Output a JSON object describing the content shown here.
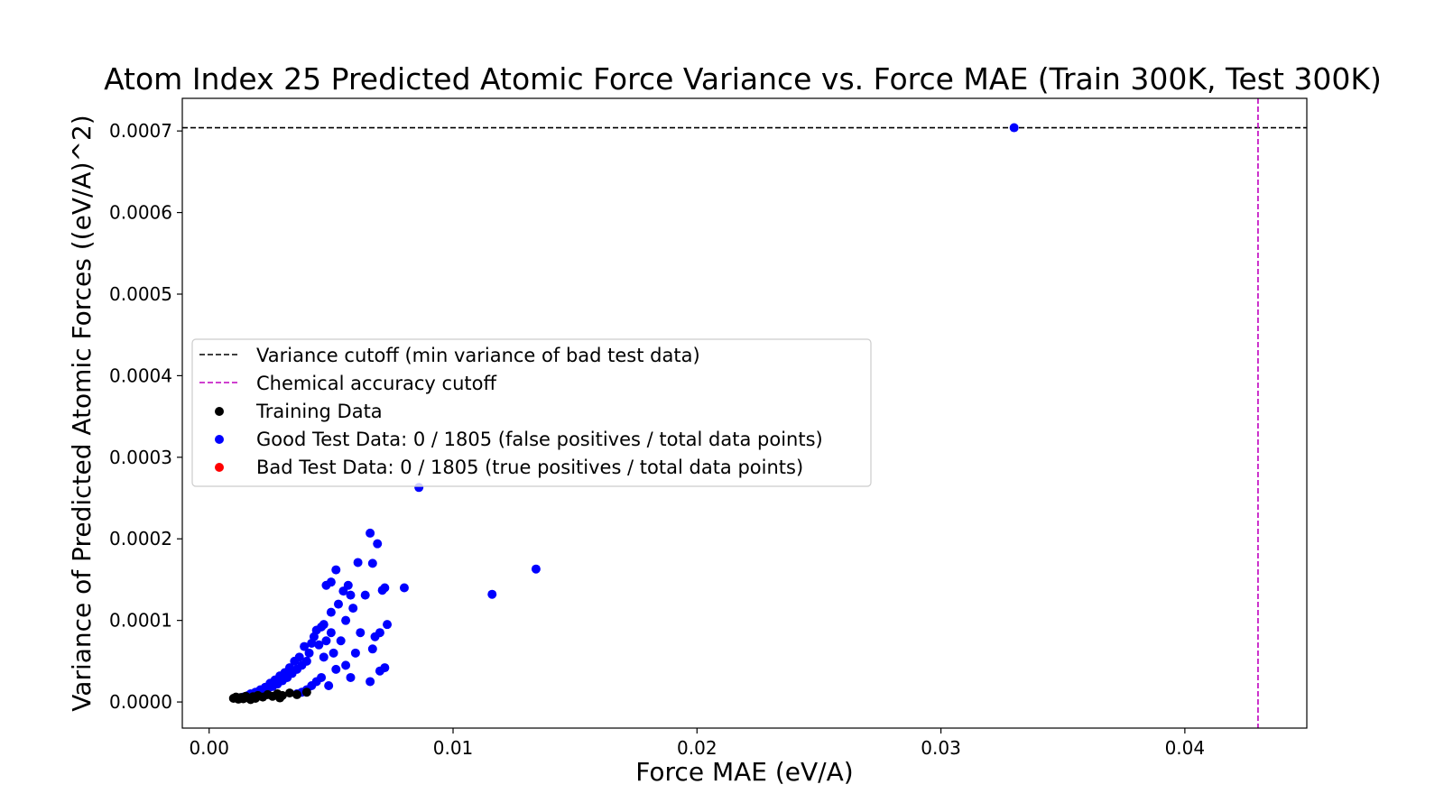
{
  "chart_data": {
    "type": "scatter",
    "title": "Atom Index 25 Predicted Atomic Force Variance vs. Force MAE (Train 300K, Test 300K)",
    "xlabel": "Force MAE (eV/A)",
    "ylabel": "Variance of Predicted Atomic Forces ((eV/A)^2)",
    "xlim": [
      -0.0011,
      0.045
    ],
    "ylim": [
      -3.2e-05,
      0.00074
    ],
    "xticks": [
      0.0,
      0.01,
      0.02,
      0.03,
      0.04
    ],
    "xtick_labels": [
      "0.00",
      "0.01",
      "0.02",
      "0.03",
      "0.04"
    ],
    "yticks": [
      0.0,
      0.0001,
      0.0002,
      0.0003,
      0.0004,
      0.0005,
      0.0006,
      0.0007
    ],
    "ytick_labels": [
      "0.0000",
      "0.0001",
      "0.0002",
      "0.0003",
      "0.0004",
      "0.0005",
      "0.0006",
      "0.0007"
    ],
    "grid": false,
    "legend_position": "center-left",
    "reference_lines": [
      {
        "name": "Variance cutoff (min variance of bad test data)",
        "orientation": "horizontal",
        "value": 0.000704,
        "color": "#000000",
        "style": "dashed"
      },
      {
        "name": "Chemical accuracy cutoff",
        "orientation": "vertical",
        "value": 0.043,
        "color": "#bf00bf",
        "style": "dashed"
      }
    ],
    "series": [
      {
        "name": "Training Data",
        "color": "#000000",
        "points": [
          [
            0.001,
            4.5e-06
          ],
          [
            0.0011,
            6e-06
          ],
          [
            0.0012,
            3.5e-06
          ],
          [
            0.0013,
            5.5e-06
          ],
          [
            0.0014,
            4e-06
          ],
          [
            0.0015,
            7e-06
          ],
          [
            0.0016,
            5e-06
          ],
          [
            0.0017,
            3e-06
          ],
          [
            0.0018,
            6.5e-06
          ],
          [
            0.0019,
            4.5e-06
          ],
          [
            0.002,
            8e-06
          ],
          [
            0.0022,
            6e-06
          ],
          [
            0.0024,
            9e-06
          ],
          [
            0.0026,
            7e-06
          ],
          [
            0.0028,
            1e-05
          ],
          [
            0.003,
            8e-06
          ],
          [
            0.0033,
            1.1e-05
          ],
          [
            0.0036,
            9e-06
          ],
          [
            0.004,
            1.2e-05
          ],
          [
            0.0029,
            5e-06
          ]
        ]
      },
      {
        "name": "Good Test Data: 0 / 1805 (false positives / total data points)",
        "color": "#0000ff",
        "points": [
          [
            0.033,
            0.000704
          ],
          [
            0.0086,
            0.000263
          ],
          [
            0.0134,
            0.000163
          ],
          [
            0.0116,
            0.000132
          ],
          [
            0.0066,
            0.000207
          ],
          [
            0.0069,
            0.000194
          ],
          [
            0.008,
            0.00014
          ],
          [
            0.0072,
            0.00014
          ],
          [
            0.0067,
            0.00017
          ],
          [
            0.0061,
            0.000171
          ],
          [
            0.0052,
            0.000162
          ],
          [
            0.0057,
            0.000143
          ],
          [
            0.0048,
            0.000143
          ],
          [
            0.005,
            0.000147
          ],
          [
            0.0055,
            0.000136
          ],
          [
            0.0058,
            0.000131
          ],
          [
            0.0064,
            0.000131
          ],
          [
            0.0071,
            0.000137
          ],
          [
            0.0073,
            9.5e-05
          ],
          [
            0.007,
            8.5e-05
          ],
          [
            0.0067,
            6.5e-05
          ],
          [
            0.0072,
            4.2e-05
          ],
          [
            0.007,
            3.8e-05
          ],
          [
            0.0066,
            2.5e-05
          ],
          [
            0.0068,
            8e-05
          ],
          [
            0.0062,
            8.5e-05
          ],
          [
            0.006,
            6e-05
          ],
          [
            0.0056,
            0.0001
          ],
          [
            0.0053,
            0.00012
          ],
          [
            0.0059,
            0.000115
          ],
          [
            0.005,
            0.00011
          ],
          [
            0.0047,
            9.5e-05
          ],
          [
            0.0054,
            7.5e-05
          ],
          [
            0.0056,
            4.5e-05
          ],
          [
            0.0058,
            3e-05
          ],
          [
            0.0049,
            2e-05
          ],
          [
            0.0045,
            7e-05
          ],
          [
            0.0043,
            8e-05
          ],
          [
            0.0041,
            6e-05
          ],
          [
            0.004,
            5e-05
          ],
          [
            0.0038,
            4.5e-05
          ],
          [
            0.0036,
            4e-05
          ],
          [
            0.0034,
            3.5e-05
          ],
          [
            0.0032,
            3e-05
          ],
          [
            0.003,
            2.6e-05
          ],
          [
            0.0028,
            2.2e-05
          ],
          [
            0.0026,
            1.9e-05
          ],
          [
            0.0024,
            1.6e-05
          ],
          [
            0.0022,
            1.3e-05
          ],
          [
            0.002,
            1.1e-05
          ],
          [
            0.0018,
            9e-06
          ],
          [
            0.0016,
            8e-06
          ],
          [
            0.0014,
            6e-06
          ],
          [
            0.0012,
            5e-06
          ],
          [
            0.0046,
            3e-05
          ],
          [
            0.0044,
            2.5e-05
          ],
          [
            0.0042,
            2e-05
          ],
          [
            0.004,
            1.5e-05
          ],
          [
            0.0038,
            1.2e-05
          ],
          [
            0.0036,
            1e-05
          ],
          [
            0.0047,
            5.5e-05
          ],
          [
            0.0048,
            7.5e-05
          ],
          [
            0.0051,
            6e-05
          ],
          [
            0.0052,
            4e-05
          ],
          [
            0.0039,
            6.8e-05
          ],
          [
            0.0037,
            5.5e-05
          ],
          [
            0.0035,
            5e-05
          ],
          [
            0.0033,
            4.2e-05
          ],
          [
            0.0031,
            3.6e-05
          ],
          [
            0.0029,
            3.2e-05
          ],
          [
            0.0027,
            2.7e-05
          ],
          [
            0.0025,
            2.3e-05
          ],
          [
            0.0023,
            1.8e-05
          ],
          [
            0.0021,
            1.5e-05
          ],
          [
            0.0019,
            1.2e-05
          ],
          [
            0.0017,
            1e-05
          ],
          [
            0.0044,
            8.8e-05
          ],
          [
            0.0046,
            9.2e-05
          ],
          [
            0.0042,
            7.2e-05
          ],
          [
            0.005,
            8.5e-05
          ]
        ]
      },
      {
        "name": "Bad Test Data: 0 / 1805 (true positives / total data points)",
        "color": "#ff0000",
        "points": []
      }
    ]
  }
}
